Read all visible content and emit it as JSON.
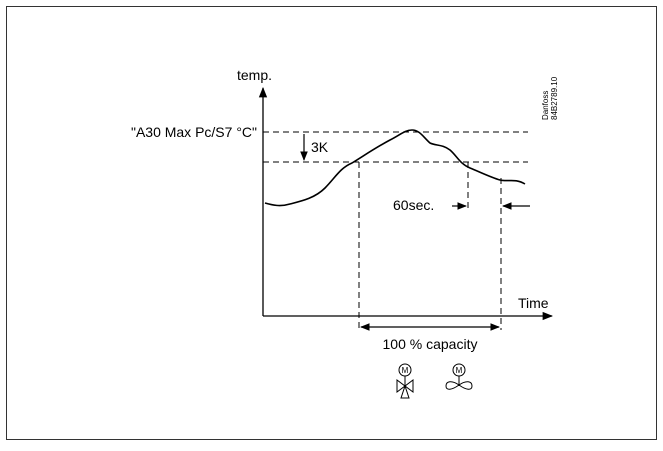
{
  "labels": {
    "y_axis": "temp.",
    "x_axis": "Time",
    "threshold": "\"A30 Max Pc/S7 °C\"",
    "hysteresis": "3K",
    "delay": "60sec.",
    "capacity": "100 % capacity"
  },
  "credit": {
    "line1": "Danfoss",
    "line2": "84B2789.10"
  },
  "icons": {
    "valve": "motor-valve-icon",
    "fan": "motor-fan-icon",
    "motor_letter": "M"
  }
}
